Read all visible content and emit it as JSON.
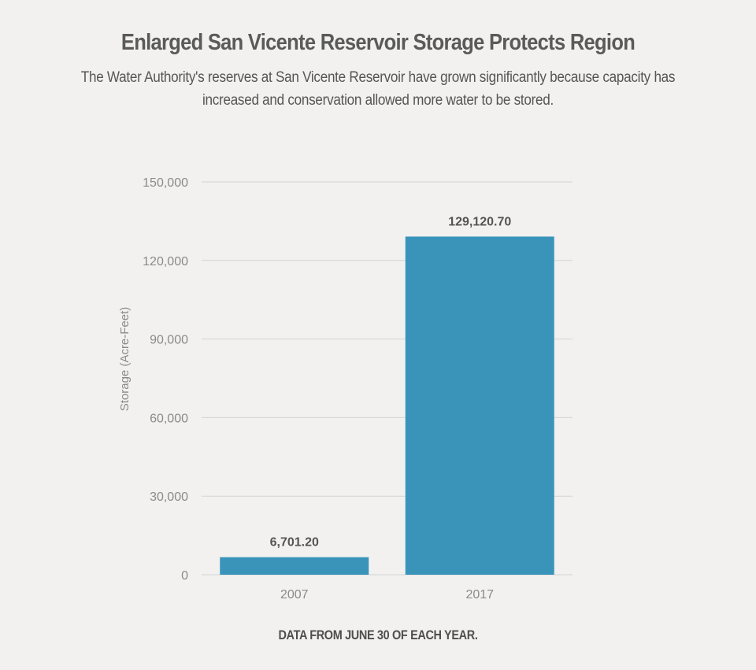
{
  "header": {
    "title": "Enlarged San Vicente Reservoir Storage Protects Region",
    "subtitle": "The Water Authority's reserves at San Vicente Reservoir have grown significantly because capacity has increased and conservation allowed more water to be stored."
  },
  "footer": {
    "note": "DATA FROM JUNE 30 OF EACH YEAR."
  },
  "chart_data": {
    "type": "bar",
    "title": "Enlarged San Vicente Reservoir Storage Protects Region",
    "subtitle": "The Water Authority's reserves at San Vicente Reservoir have grown significantly because capacity has increased and conservation allowed more water to be stored.",
    "categories": [
      "2007",
      "2017"
    ],
    "values": [
      6701.2,
      129120.7
    ],
    "data_labels": [
      "6,701.20",
      "129,120.70"
    ],
    "xlabel": "",
    "ylabel": "Storage (Acre-Feet)",
    "ylim": [
      0,
      150000
    ],
    "yticks": [
      0,
      30000,
      60000,
      90000,
      120000,
      150000
    ],
    "ytick_labels": [
      "0",
      "30,000",
      "60,000",
      "90,000",
      "120,000",
      "150,000"
    ],
    "grid": true,
    "legend": "none",
    "bar_color": "#3a94ba",
    "grid_color": "#d4d4d4"
  }
}
